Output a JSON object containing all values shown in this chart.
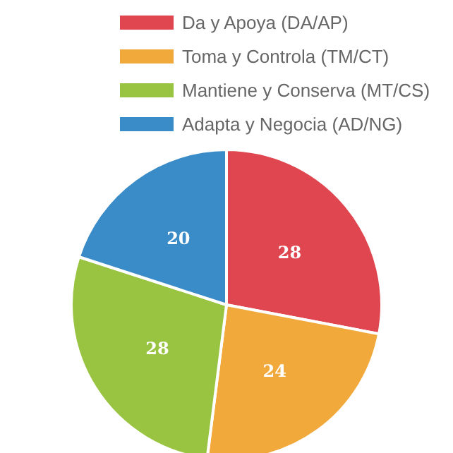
{
  "chart_data": {
    "type": "pie",
    "categories": [
      "Da y Apoya (DA/AP)",
      "Toma y Controla (TM/CT)",
      "Mantiene y Conserva (MT/CS)",
      "Adapta y Negocia (AD/NG)"
    ],
    "values": [
      28,
      24,
      28,
      20
    ],
    "colors": [
      "#e0464f",
      "#f1a93b",
      "#99c441",
      "#3a8cc8"
    ],
    "data_labels": true,
    "legend": "top"
  }
}
